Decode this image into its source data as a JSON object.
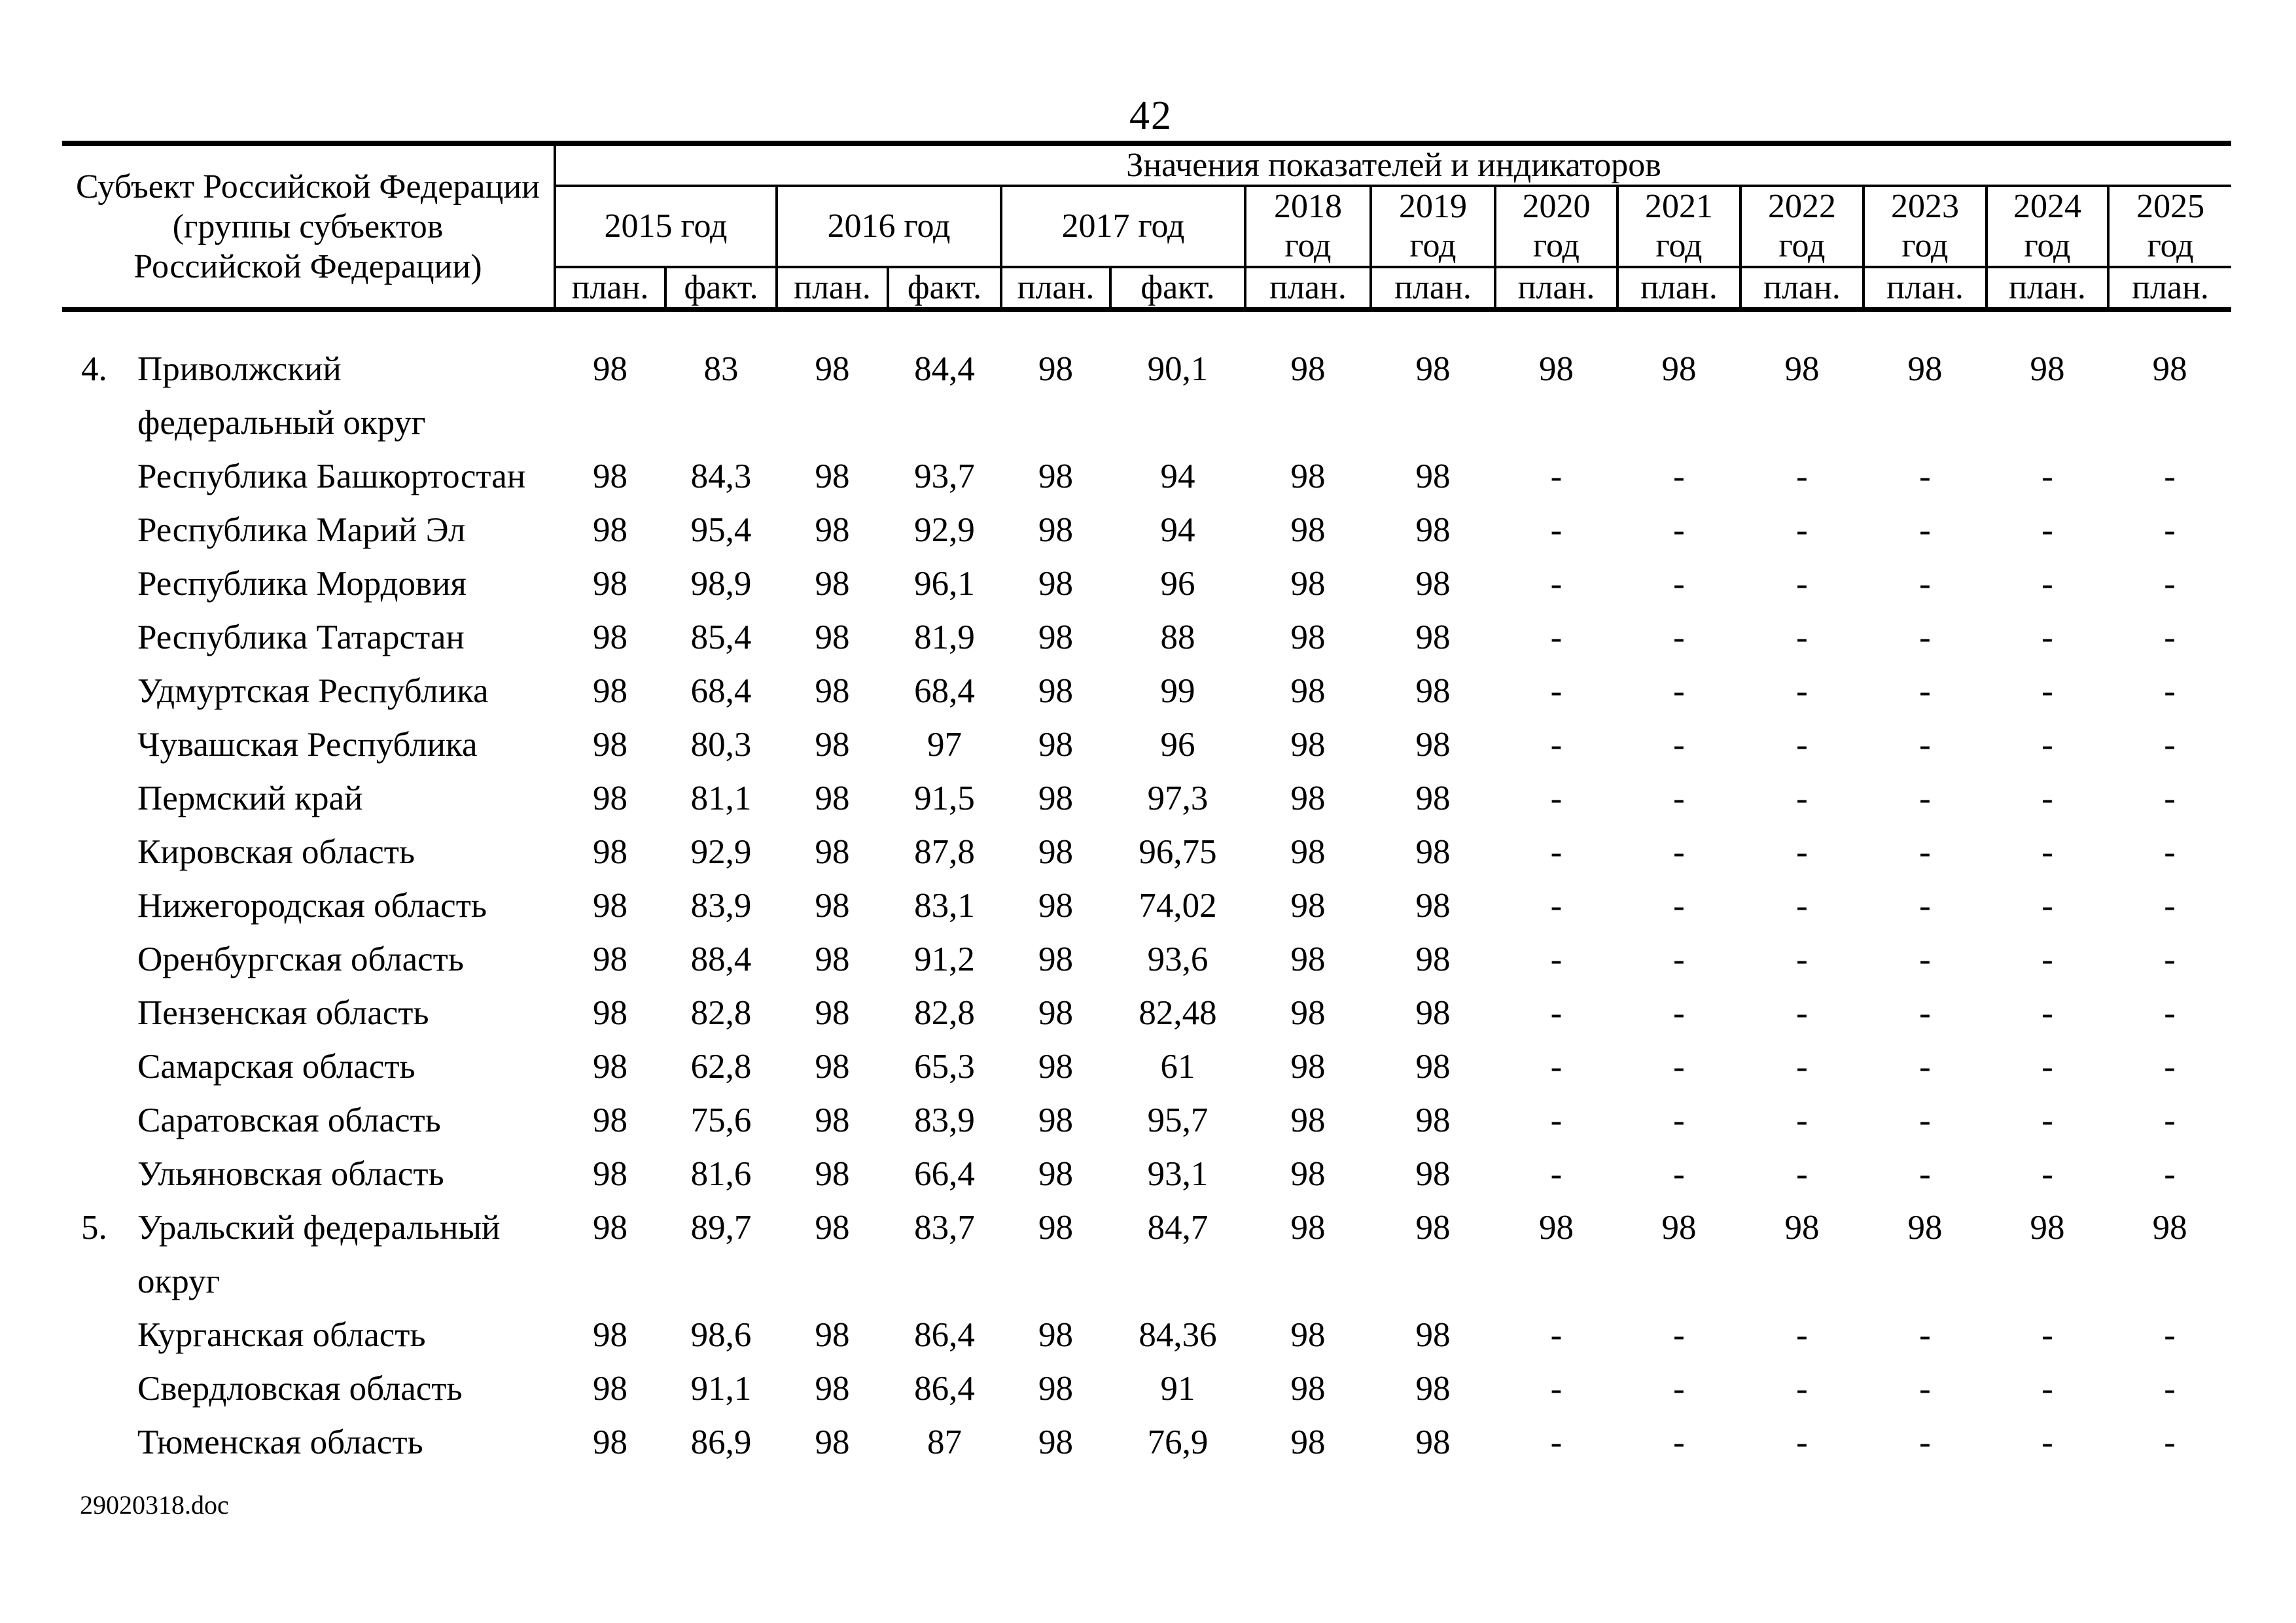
{
  "page": {
    "number": "42",
    "footer": "29020318.doc"
  },
  "table": {
    "subject_header": "Субъект Российской Федерации\n(группы субъектов\nРоссийской Федерации)",
    "values_header": "Значения показателей и индикаторов",
    "year_groups": [
      {
        "label": "2015 год",
        "sub": [
          "план.",
          "факт."
        ]
      },
      {
        "label": "2016 год",
        "sub": [
          "план.",
          "факт."
        ]
      },
      {
        "label": "2017 год",
        "sub": [
          "план.",
          "факт."
        ]
      },
      {
        "label": "2018 год",
        "sub": [
          "план."
        ]
      },
      {
        "label": "2019 год",
        "sub": [
          "план."
        ]
      },
      {
        "label": "2020 год",
        "sub": [
          "план."
        ]
      },
      {
        "label": "2021 год",
        "sub": [
          "план."
        ]
      },
      {
        "label": "2022 год",
        "sub": [
          "план."
        ]
      },
      {
        "label": "2023 год",
        "sub": [
          "план."
        ]
      },
      {
        "label": "2024 год",
        "sub": [
          "план."
        ]
      },
      {
        "label": "2025 год",
        "sub": [
          "план."
        ]
      }
    ],
    "rows": [
      {
        "num": "4.",
        "name": "Приволжский федеральный округ",
        "values": [
          "98",
          "83",
          "98",
          "84,4",
          "98",
          "90,1",
          "98",
          "98",
          "98",
          "98",
          "98",
          "98",
          "98",
          "98"
        ]
      },
      {
        "num": "",
        "name": "Республика Башкортостан",
        "values": [
          "98",
          "84,3",
          "98",
          "93,7",
          "98",
          "94",
          "98",
          "98",
          "-",
          "-",
          "-",
          "-",
          "-",
          "-"
        ]
      },
      {
        "num": "",
        "name": "Республика Марий Эл",
        "values": [
          "98",
          "95,4",
          "98",
          "92,9",
          "98",
          "94",
          "98",
          "98",
          "-",
          "-",
          "-",
          "-",
          "-",
          "-"
        ]
      },
      {
        "num": "",
        "name": "Республика Мордовия",
        "values": [
          "98",
          "98,9",
          "98",
          "96,1",
          "98",
          "96",
          "98",
          "98",
          "-",
          "-",
          "-",
          "-",
          "-",
          "-"
        ]
      },
      {
        "num": "",
        "name": "Республика Татарстан",
        "values": [
          "98",
          "85,4",
          "98",
          "81,9",
          "98",
          "88",
          "98",
          "98",
          "-",
          "-",
          "-",
          "-",
          "-",
          "-"
        ]
      },
      {
        "num": "",
        "name": "Удмуртская Республика",
        "values": [
          "98",
          "68,4",
          "98",
          "68,4",
          "98",
          "99",
          "98",
          "98",
          "-",
          "-",
          "-",
          "-",
          "-",
          "-"
        ]
      },
      {
        "num": "",
        "name": "Чувашская Республика",
        "values": [
          "98",
          "80,3",
          "98",
          "97",
          "98",
          "96",
          "98",
          "98",
          "-",
          "-",
          "-",
          "-",
          "-",
          "-"
        ]
      },
      {
        "num": "",
        "name": "Пермский край",
        "values": [
          "98",
          "81,1",
          "98",
          "91,5",
          "98",
          "97,3",
          "98",
          "98",
          "-",
          "-",
          "-",
          "-",
          "-",
          "-"
        ]
      },
      {
        "num": "",
        "name": "Кировская область",
        "values": [
          "98",
          "92,9",
          "98",
          "87,8",
          "98",
          "96,75",
          "98",
          "98",
          "-",
          "-",
          "-",
          "-",
          "-",
          "-"
        ]
      },
      {
        "num": "",
        "name": "Нижегородская область",
        "values": [
          "98",
          "83,9",
          "98",
          "83,1",
          "98",
          "74,02",
          "98",
          "98",
          "-",
          "-",
          "-",
          "-",
          "-",
          "-"
        ]
      },
      {
        "num": "",
        "name": "Оренбургская область",
        "values": [
          "98",
          "88,4",
          "98",
          "91,2",
          "98",
          "93,6",
          "98",
          "98",
          "-",
          "-",
          "-",
          "-",
          "-",
          "-"
        ]
      },
      {
        "num": "",
        "name": "Пензенская область",
        "values": [
          "98",
          "82,8",
          "98",
          "82,8",
          "98",
          "82,48",
          "98",
          "98",
          "-",
          "-",
          "-",
          "-",
          "-",
          "-"
        ]
      },
      {
        "num": "",
        "name": "Самарская область",
        "values": [
          "98",
          "62,8",
          "98",
          "65,3",
          "98",
          "61",
          "98",
          "98",
          "-",
          "-",
          "-",
          "-",
          "-",
          "-"
        ]
      },
      {
        "num": "",
        "name": "Саратовская область",
        "values": [
          "98",
          "75,6",
          "98",
          "83,9",
          "98",
          "95,7",
          "98",
          "98",
          "-",
          "-",
          "-",
          "-",
          "-",
          "-"
        ]
      },
      {
        "num": "",
        "name": "Ульяновская область",
        "values": [
          "98",
          "81,6",
          "98",
          "66,4",
          "98",
          "93,1",
          "98",
          "98",
          "-",
          "-",
          "-",
          "-",
          "-",
          "-"
        ]
      },
      {
        "num": "5.",
        "name": "Уральский федеральный округ",
        "values": [
          "98",
          "89,7",
          "98",
          "83,7",
          "98",
          "84,7",
          "98",
          "98",
          "98",
          "98",
          "98",
          "98",
          "98",
          "98"
        ]
      },
      {
        "num": "",
        "name": "Курганская область",
        "values": [
          "98",
          "98,6",
          "98",
          "86,4",
          "98",
          "84,36",
          "98",
          "98",
          "-",
          "-",
          "-",
          "-",
          "-",
          "-"
        ]
      },
      {
        "num": "",
        "name": "Свердловская область",
        "values": [
          "98",
          "91,1",
          "98",
          "86,4",
          "98",
          "91",
          "98",
          "98",
          "-",
          "-",
          "-",
          "-",
          "-",
          "-"
        ]
      },
      {
        "num": "",
        "name": "Тюменская область",
        "values": [
          "98",
          "86,9",
          "98",
          "87",
          "98",
          "76,9",
          "98",
          "98",
          "-",
          "-",
          "-",
          "-",
          "-",
          "-"
        ]
      }
    ]
  }
}
